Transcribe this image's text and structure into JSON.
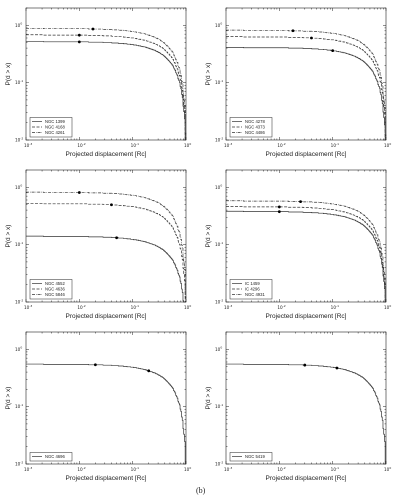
{
  "figure_label": "(b)",
  "chart_data": [
    {
      "type": "line",
      "xlabel": "Projected displacement [Rc]",
      "ylabel": "P(d > x)",
      "x_scale": "log",
      "y_scale": "log",
      "xlim": [
        0.001,
        1
      ],
      "ylim": [
        0.01,
        2
      ],
      "xticks": [
        "10^-3",
        "10^-2",
        "10^-1",
        "10^0"
      ],
      "yticks": [
        "10^-2",
        "10^-1",
        "10^0"
      ],
      "legend_position": "bottom-left",
      "series": [
        {
          "name": "NGC 1399",
          "style": "solid",
          "y0": 0.52,
          "marker_x": 0.01
        },
        {
          "name": "NGC 4168",
          "style": "dashed",
          "y0": 0.68,
          "marker_x": 0.01
        },
        {
          "name": "NGC 4261",
          "style": "dashdot",
          "y0": 0.88,
          "marker_x": 0.018
        }
      ]
    },
    {
      "type": "line",
      "xlabel": "Projected displacement [Rc]",
      "ylabel": "P(d > x)",
      "x_scale": "log",
      "y_scale": "log",
      "xlim": [
        0.001,
        1
      ],
      "ylim": [
        0.01,
        2
      ],
      "xticks": [
        "10^-3",
        "10^-2",
        "10^-1",
        "10^0"
      ],
      "yticks": [
        "10^-2",
        "10^-1",
        "10^0"
      ],
      "legend_position": "bottom-left",
      "series": [
        {
          "name": "NGC 4278",
          "style": "solid",
          "y0": 0.41,
          "marker_x": 0.1
        },
        {
          "name": "NGC 4373",
          "style": "dashed",
          "y0": 0.63,
          "marker_x": 0.04
        },
        {
          "name": "NGC 4486",
          "style": "dashdot",
          "y0": 0.82,
          "marker_x": 0.018
        }
      ]
    },
    {
      "type": "line",
      "xlabel": "Projected displacement [Rc]",
      "ylabel": "P(d > x)",
      "x_scale": "log",
      "y_scale": "log",
      "xlim": [
        0.001,
        1
      ],
      "ylim": [
        0.01,
        2
      ],
      "xticks": [
        "10^-3",
        "10^-2",
        "10^-1",
        "10^0"
      ],
      "yticks": [
        "10^-2",
        "10^-1",
        "10^0"
      ],
      "legend_position": "bottom-left",
      "series": [
        {
          "name": "NGC 4552",
          "style": "solid",
          "y0": 0.14,
          "marker_x": 0.05
        },
        {
          "name": "NGC 4636",
          "style": "dashed",
          "y0": 0.52,
          "marker_x": 0.04
        },
        {
          "name": "NGC 5846",
          "style": "dashdot",
          "y0": 0.82,
          "marker_x": 0.01
        }
      ]
    },
    {
      "type": "line",
      "xlabel": "Projected displacement [Rc]",
      "ylabel": "P(d > x)",
      "x_scale": "log",
      "y_scale": "log",
      "xlim": [
        0.001,
        1
      ],
      "ylim": [
        0.01,
        2
      ],
      "xticks": [
        "10^-3",
        "10^-2",
        "10^-1",
        "10^0"
      ],
      "yticks": [
        "10^-2",
        "10^-1",
        "10^0"
      ],
      "legend_position": "bottom-left",
      "series": [
        {
          "name": "IC 1459",
          "style": "solid",
          "y0": 0.38,
          "marker_x": 0.01
        },
        {
          "name": "IC 4296",
          "style": "dashed",
          "y0": 0.46,
          "marker_x": 0.01
        },
        {
          "name": "NGC 4931",
          "style": "dashdot",
          "y0": 0.58,
          "marker_x": 0.025
        }
      ]
    },
    {
      "type": "line",
      "xlabel": "Projected displacement [Rc]",
      "ylabel": "P(d > x)",
      "x_scale": "log",
      "y_scale": "log",
      "xlim": [
        0.001,
        1
      ],
      "ylim": [
        0.01,
        2
      ],
      "xticks": [
        "10^-3",
        "10^-2",
        "10^-1",
        "10^0"
      ],
      "yticks": [
        "10^-2",
        "10^-1",
        "10^0"
      ],
      "legend_position": "bottom-left",
      "series": [
        {
          "name": "NGC 4696",
          "style": "solid",
          "y0": 0.55,
          "marker_x": [
            0.02,
            0.2
          ]
        }
      ]
    },
    {
      "type": "line",
      "xlabel": "Projected displacement [Rc]",
      "ylabel": "P(d > x)",
      "x_scale": "log",
      "y_scale": "log",
      "xlim": [
        0.001,
        1
      ],
      "ylim": [
        0.01,
        2
      ],
      "xticks": [
        "10^-3",
        "10^-2",
        "10^-1",
        "10^0"
      ],
      "yticks": [
        "10^-2",
        "10^-1",
        "10^0"
      ],
      "legend_position": "bottom-left",
      "series": [
        {
          "name": "NGC 5419",
          "style": "solid",
          "y0": 0.55,
          "marker_x": [
            0.03,
            0.12
          ]
        }
      ]
    }
  ]
}
